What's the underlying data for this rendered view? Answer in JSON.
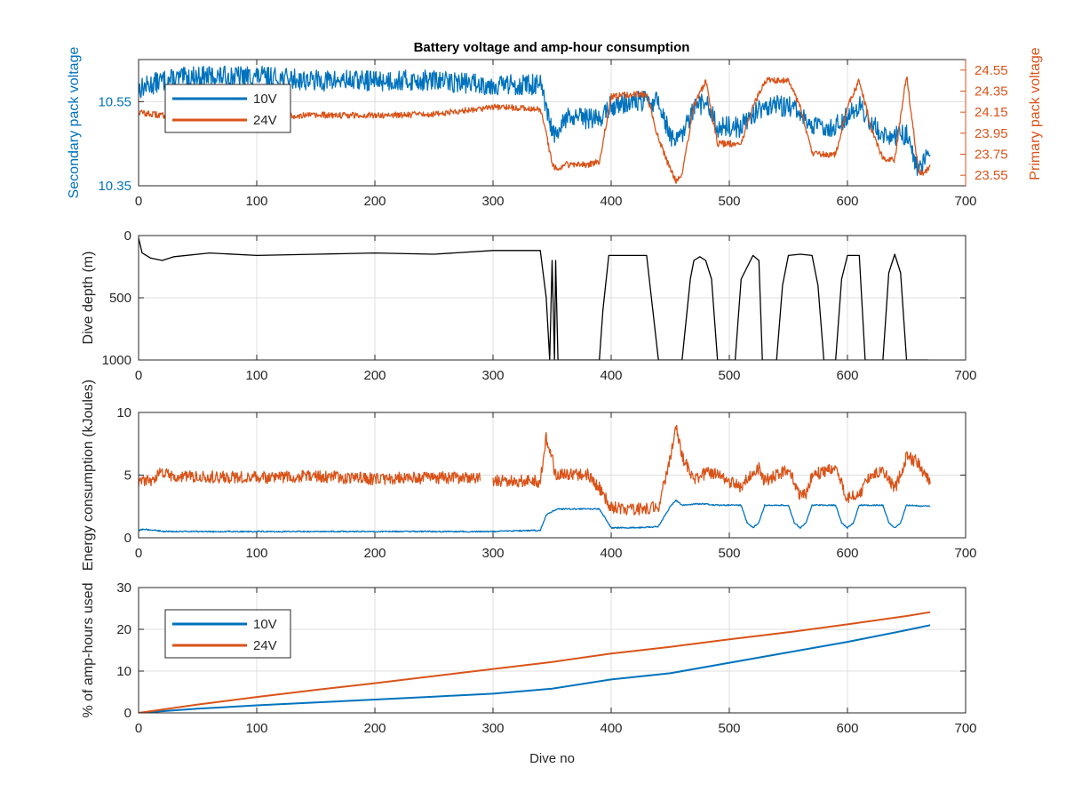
{
  "figure_title": "Battery voltage and amp-hour consumption",
  "colors": {
    "blue": "#0072BD",
    "orange": "#D95319",
    "black": "#000000",
    "grid": "#dfdfdf",
    "axis": "#262626"
  },
  "chart_data": [
    {
      "type": "line",
      "title": "Battery voltage and amp-hour consumption",
      "xlabel": "",
      "ylabel_left": "Secondary pack voltage",
      "ylabel_right": "Primary pack voltage",
      "xlim": [
        0,
        700
      ],
      "ylim_left": [
        10.35,
        10.65
      ],
      "ylim_right": [
        23.45,
        24.65
      ],
      "xticks": [
        "0",
        "100",
        "200",
        "300",
        "400",
        "500",
        "600",
        "700"
      ],
      "yticks_left": [
        "10.35",
        "10.55"
      ],
      "yticks_right": [
        "23.55",
        "23.75",
        "23.95",
        "24.15",
        "24.35",
        "24.55"
      ],
      "legend": [
        "10V",
        "24V"
      ],
      "legend_position": "upper-left",
      "grid": true,
      "series": [
        {
          "name": "10V",
          "axis": "left",
          "noise": 0.025,
          "x": [
            0,
            20,
            50,
            100,
            150,
            200,
            250,
            300,
            340,
            345,
            350,
            355,
            360,
            380,
            390,
            400,
            420,
            440,
            450,
            455,
            460,
            470,
            480,
            490,
            510,
            520,
            530,
            550,
            560,
            570,
            590,
            600,
            610,
            620,
            630,
            640,
            650,
            660,
            665,
            670
          ],
          "y": [
            10.58,
            10.6,
            10.61,
            10.61,
            10.6,
            10.6,
            10.6,
            10.59,
            10.59,
            10.53,
            10.48,
            10.46,
            10.51,
            10.51,
            10.51,
            10.54,
            10.55,
            10.55,
            10.47,
            10.45,
            10.47,
            10.53,
            10.55,
            10.49,
            10.49,
            10.52,
            10.54,
            10.54,
            10.52,
            10.49,
            10.49,
            10.52,
            10.54,
            10.5,
            10.47,
            10.47,
            10.47,
            10.39,
            10.41,
            10.42
          ]
        },
        {
          "name": "24V",
          "axis": "right",
          "noise": 0.03,
          "x": [
            0,
            10,
            20,
            50,
            100,
            150,
            200,
            250,
            300,
            340,
            345,
            350,
            355,
            360,
            380,
            390,
            400,
            420,
            430,
            440,
            450,
            455,
            460,
            470,
            480,
            490,
            510,
            520,
            530,
            550,
            560,
            570,
            590,
            600,
            610,
            620,
            630,
            640,
            650,
            660,
            665,
            670
          ],
          "y": [
            24.15,
            24.13,
            24.12,
            24.11,
            24.11,
            24.12,
            24.12,
            24.13,
            24.2,
            24.18,
            23.95,
            23.65,
            23.6,
            23.65,
            23.65,
            23.68,
            24.3,
            24.32,
            24.32,
            23.9,
            23.6,
            23.5,
            23.55,
            24.2,
            24.45,
            23.85,
            23.85,
            24.2,
            24.45,
            24.45,
            24.2,
            23.75,
            23.75,
            24.2,
            24.45,
            24.0,
            23.7,
            23.7,
            24.5,
            23.6,
            23.55,
            23.65
          ]
        }
      ]
    },
    {
      "type": "line",
      "xlabel": "",
      "ylabel": "Dive depth (m)",
      "xlim": [
        0,
        700
      ],
      "ylim": [
        0,
        1000
      ],
      "y_reversed": true,
      "xticks": [
        "0",
        "100",
        "200",
        "300",
        "400",
        "500",
        "600",
        "700"
      ],
      "yticks": [
        "0",
        "500",
        "1000"
      ],
      "grid": true,
      "series": [
        {
          "name": "",
          "color": "black",
          "noise": 0,
          "x": [
            0,
            3,
            10,
            20,
            30,
            60,
            100,
            150,
            200,
            250,
            300,
            340,
            345,
            348,
            350,
            352,
            353,
            355,
            390,
            393,
            398,
            430,
            440,
            443,
            460,
            467,
            470,
            475,
            480,
            485,
            490,
            495,
            505,
            510,
            520,
            525,
            528,
            540,
            545,
            550,
            560,
            570,
            575,
            580,
            590,
            595,
            600,
            610,
            615,
            620,
            630,
            635,
            640,
            645,
            650,
            660,
            668
          ],
          "y": [
            20,
            140,
            180,
            200,
            170,
            140,
            160,
            150,
            140,
            150,
            120,
            120,
            500,
            1000,
            200,
            1000,
            200,
            1000,
            1000,
            600,
            160,
            160,
            1000,
            1000,
            1000,
            350,
            200,
            170,
            200,
            350,
            1000,
            1000,
            1000,
            350,
            160,
            200,
            1000,
            1000,
            400,
            160,
            150,
            160,
            400,
            1000,
            1000,
            350,
            160,
            160,
            1000,
            1000,
            1000,
            300,
            150,
            300,
            1000,
            1000,
            1000
          ]
        }
      ]
    },
    {
      "type": "line",
      "xlabel": "",
      "ylabel": "Energy consumption (kJoules)",
      "xlim": [
        0,
        700
      ],
      "ylim": [
        0,
        10
      ],
      "xticks": [
        "0",
        "100",
        "200",
        "300",
        "400",
        "500",
        "600",
        "700"
      ],
      "yticks": [
        "0",
        "5",
        "10"
      ],
      "grid": true,
      "series": [
        {
          "name": "10V",
          "color": "blue",
          "noise": 0.05,
          "x": [
            0,
            5,
            10,
            15,
            20,
            50,
            100,
            150,
            200,
            250,
            300,
            340,
            345,
            350,
            355,
            380,
            390,
            400,
            420,
            440,
            450,
            455,
            460,
            470,
            480,
            490,
            510,
            515,
            520,
            525,
            530,
            550,
            555,
            560,
            565,
            570,
            590,
            595,
            600,
            605,
            610,
            630,
            635,
            640,
            645,
            650,
            670
          ],
          "y": [
            0.6,
            0.7,
            0.6,
            0.6,
            0.5,
            0.5,
            0.5,
            0.5,
            0.5,
            0.5,
            0.5,
            0.6,
            1.8,
            2.1,
            2.3,
            2.3,
            2.3,
            0.8,
            0.8,
            0.9,
            2.5,
            3.0,
            2.6,
            2.7,
            2.7,
            2.6,
            2.6,
            1.2,
            0.8,
            1.2,
            2.6,
            2.6,
            1.2,
            0.8,
            1.2,
            2.6,
            2.6,
            1.2,
            0.8,
            1.2,
            2.6,
            2.6,
            1.2,
            0.8,
            1.2,
            2.6,
            2.5
          ]
        },
        {
          "name": "24V",
          "color": "orange",
          "noise": 0.5,
          "x": [
            0,
            10,
            20,
            30,
            50,
            100,
            150,
            200,
            250,
            290,
            292,
            300,
            340,
            345,
            350,
            352,
            355,
            380,
            390,
            400,
            420,
            440,
            450,
            455,
            460,
            470,
            480,
            490,
            510,
            520,
            525,
            530,
            550,
            560,
            565,
            570,
            590,
            600,
            610,
            620,
            630,
            640,
            650,
            660,
            670
          ],
          "y": [
            4.5,
            4.5,
            5.2,
            4.8,
            4.9,
            4.8,
            4.9,
            4.7,
            4.8,
            4.7,
            null,
            4.6,
            4.5,
            8.0,
            6.5,
            5.0,
            5.0,
            5.0,
            4.0,
            2.4,
            2.3,
            2.4,
            6.5,
            9.0,
            6.5,
            4.5,
            5.2,
            5.0,
            4.0,
            5.3,
            5.5,
            4.5,
            5.5,
            3.3,
            3.5,
            5.0,
            5.5,
            3.2,
            3.5,
            5.0,
            5.5,
            3.8,
            6.5,
            6.0,
            4.3
          ]
        }
      ]
    },
    {
      "type": "line",
      "xlabel": "Dive no",
      "ylabel": "% of amp-hours used",
      "xlim": [
        0,
        700
      ],
      "ylim": [
        0,
        30
      ],
      "xticks": [
        "0",
        "100",
        "200",
        "300",
        "400",
        "500",
        "600",
        "700"
      ],
      "yticks": [
        "0",
        "10",
        "20",
        "30"
      ],
      "legend": [
        "10V",
        "24V"
      ],
      "legend_position": "upper-left",
      "grid": true,
      "series": [
        {
          "name": "10V",
          "color": "blue",
          "noise": 0,
          "x": [
            0,
            50,
            100,
            150,
            200,
            250,
            300,
            350,
            400,
            450,
            500,
            550,
            600,
            650,
            670
          ],
          "y": [
            0,
            1.0,
            1.8,
            2.5,
            3.2,
            3.9,
            4.6,
            5.8,
            8.0,
            9.5,
            12.0,
            14.5,
            17.0,
            19.8,
            21.0
          ]
        },
        {
          "name": "24V",
          "color": "orange",
          "noise": 0,
          "x": [
            0,
            50,
            100,
            150,
            200,
            250,
            300,
            350,
            400,
            450,
            500,
            550,
            600,
            650,
            670
          ],
          "y": [
            0,
            2.0,
            3.8,
            5.5,
            7.1,
            8.8,
            10.5,
            12.2,
            14.2,
            15.8,
            17.6,
            19.3,
            21.2,
            23.2,
            24.1
          ]
        }
      ]
    }
  ]
}
